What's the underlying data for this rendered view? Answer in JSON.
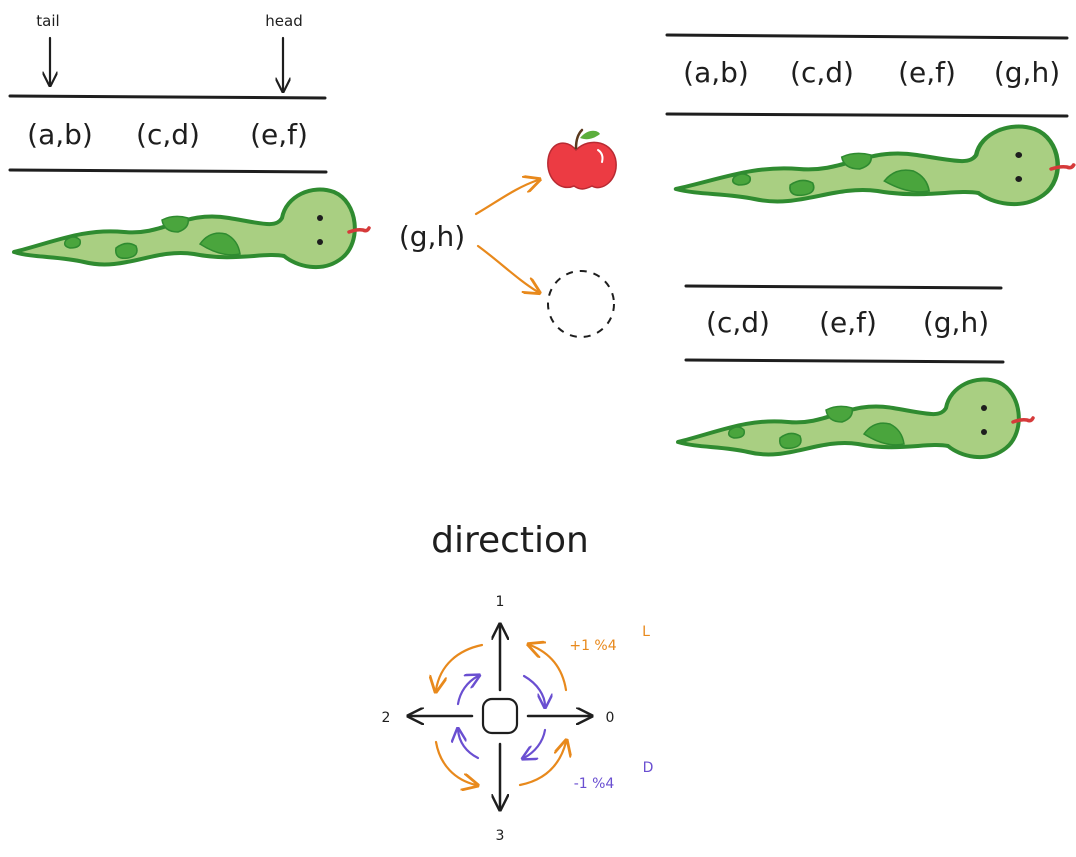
{
  "pointers": {
    "tail": "tail",
    "head": "head"
  },
  "original_queue": [
    "(a,b)",
    "(c,d)",
    "(e,f)"
  ],
  "new_point": "(g,h)",
  "grow_queue": [
    "(a,b)",
    "(c,d)",
    "(e,f)",
    "(g,h)"
  ],
  "move_queue": [
    "(c,d)",
    "(e,f)",
    "(g,h)"
  ],
  "direction": {
    "title": "direction",
    "labels": {
      "right": "0",
      "up": "1",
      "left": "2",
      "down": "3"
    },
    "left_turn": {
      "formula": "+1 %4",
      "key": "L"
    },
    "right_turn": {
      "formula": "-1 %4",
      "key": "D"
    }
  },
  "colors": {
    "ink": "#1e1e1e",
    "orange": "#e8891c",
    "purple": "#6a4fd1",
    "snake_body": "#a9cf82",
    "snake_outline": "#2f8b30",
    "snake_spot": "#4aa53d",
    "apple": "#ec3b43",
    "tongue": "#d63a3a"
  },
  "icons": [
    "apple-icon",
    "empty-cell-icon",
    "snake-icon",
    "square-head-icon"
  ]
}
